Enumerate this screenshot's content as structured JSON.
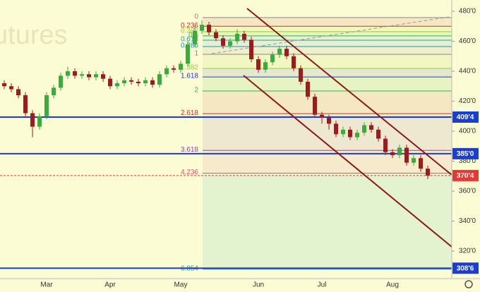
{
  "chart_data": {
    "type": "candlestick",
    "watermark": "utures",
    "categories": [
      null,
      null,
      null,
      null,
      null,
      null,
      "Mar",
      null,
      null,
      null,
      null,
      null,
      null,
      null,
      null,
      "Apr",
      null,
      null,
      null,
      null,
      null,
      null,
      null,
      null,
      null,
      "May",
      null,
      null,
      null,
      null,
      null,
      null,
      null,
      null,
      null,
      null,
      "Jun",
      null,
      null,
      null,
      null,
      null,
      null,
      null,
      null,
      "Jul",
      null,
      null,
      null,
      null,
      null,
      null,
      null,
      null,
      null,
      "Aug",
      null,
      null,
      null,
      null,
      null
    ],
    "open": [
      432,
      430,
      428,
      424,
      412,
      403,
      410,
      424,
      429,
      437,
      440,
      437,
      438,
      436,
      438,
      435,
      430,
      432,
      434,
      433,
      432,
      434,
      431,
      438,
      442,
      441,
      445,
      458,
      467,
      471,
      466,
      462,
      457,
      460,
      465,
      461,
      448,
      441,
      446,
      451,
      455,
      450,
      442,
      433,
      423,
      411,
      409,
      405,
      398,
      401,
      396,
      399,
      404,
      401,
      395,
      386,
      384,
      389,
      379,
      382,
      375
    ],
    "high": [
      434,
      432,
      430,
      426,
      414,
      412,
      426,
      431,
      439,
      443,
      442,
      440,
      440,
      440,
      440,
      437,
      434,
      436,
      436,
      435,
      436,
      436,
      440,
      444,
      444,
      447,
      460,
      470,
      474,
      473,
      468,
      464,
      462,
      468,
      467,
      463,
      450,
      448,
      453,
      457,
      457,
      452,
      444,
      435,
      425,
      413,
      411,
      407,
      403,
      403,
      401,
      406,
      406,
      403,
      397,
      388,
      391,
      391,
      384,
      384,
      377
    ],
    "low": [
      428,
      426,
      422,
      410,
      396,
      401,
      408,
      422,
      427,
      435,
      435,
      435,
      434,
      434,
      433,
      428,
      428,
      430,
      431,
      430,
      430,
      429,
      429,
      436,
      439,
      439,
      443,
      456,
      465,
      464,
      460,
      455,
      455,
      458,
      459,
      446,
      439,
      439,
      444,
      449,
      448,
      440,
      431,
      421,
      409,
      405,
      401,
      396,
      396,
      394,
      394,
      397,
      399,
      393,
      384,
      382,
      382,
      377,
      377,
      373,
      368
    ],
    "close": [
      430,
      428,
      424,
      412,
      403,
      410,
      424,
      429,
      437,
      440,
      437,
      438,
      436,
      438,
      435,
      430,
      432,
      434,
      433,
      432,
      434,
      431,
      438,
      442,
      441,
      445,
      458,
      467,
      471,
      466,
      462,
      457,
      460,
      465,
      461,
      448,
      441,
      446,
      451,
      455,
      450,
      442,
      433,
      423,
      411,
      409,
      405,
      398,
      401,
      396,
      399,
      404,
      401,
      395,
      386,
      384,
      389,
      379,
      382,
      375,
      370.4
    ],
    "up_color": "#3caa3c",
    "down_color": "#9b1c1c",
    "ylim": [
      301.65,
      487.53
    ],
    "yticks": [
      {
        "value": 480,
        "label": "480'0"
      },
      {
        "value": 460,
        "label": "460'0"
      },
      {
        "value": 440,
        "label": "440'0"
      },
      {
        "value": 420,
        "label": "420'0"
      },
      {
        "value": 400,
        "label": "400'0"
      },
      {
        "value": 380,
        "label": "380'0"
      },
      {
        "value": 360,
        "label": "360'0"
      },
      {
        "value": 340,
        "label": "340'0"
      },
      {
        "value": 320,
        "label": "320'0"
      }
    ],
    "fib": {
      "ratios": [
        0,
        0.236,
        0.382,
        0.5,
        0.618,
        0.786,
        1,
        1.382,
        1.618,
        2,
        2.618,
        3.618,
        4.236,
        6.854
      ],
      "prices": [
        475.8,
        470.0,
        466.4,
        463.6,
        460.7,
        456.5,
        451.3,
        441.9,
        436.2,
        426.8,
        411.7,
        387.2,
        372.0,
        307.9
      ],
      "colors": [
        "#888888",
        "#c0392b",
        "#9acd32",
        "#3cb043",
        "#2e9e8f",
        "#1f8fbf",
        "#888888",
        "#9acd32",
        "#1e3cc8",
        "#3cb043",
        "#c0392b",
        "#8e44ad",
        "#d9577a",
        "#17a2a2"
      ]
    },
    "levels": [
      {
        "value": 409.4,
        "label": "409'4",
        "color": "#1a3fd0",
        "line_style": "solid"
      },
      {
        "value": 385,
        "label": "385'0",
        "color": "#1a3fd0",
        "line_style": "solid"
      },
      {
        "value": 308.6,
        "label": "308'6",
        "color": "#1a3fd0",
        "line_style": "solid"
      },
      {
        "value": 370.4,
        "label": "370'4",
        "color": "#e53935",
        "line_style": "dashed"
      }
    ]
  }
}
